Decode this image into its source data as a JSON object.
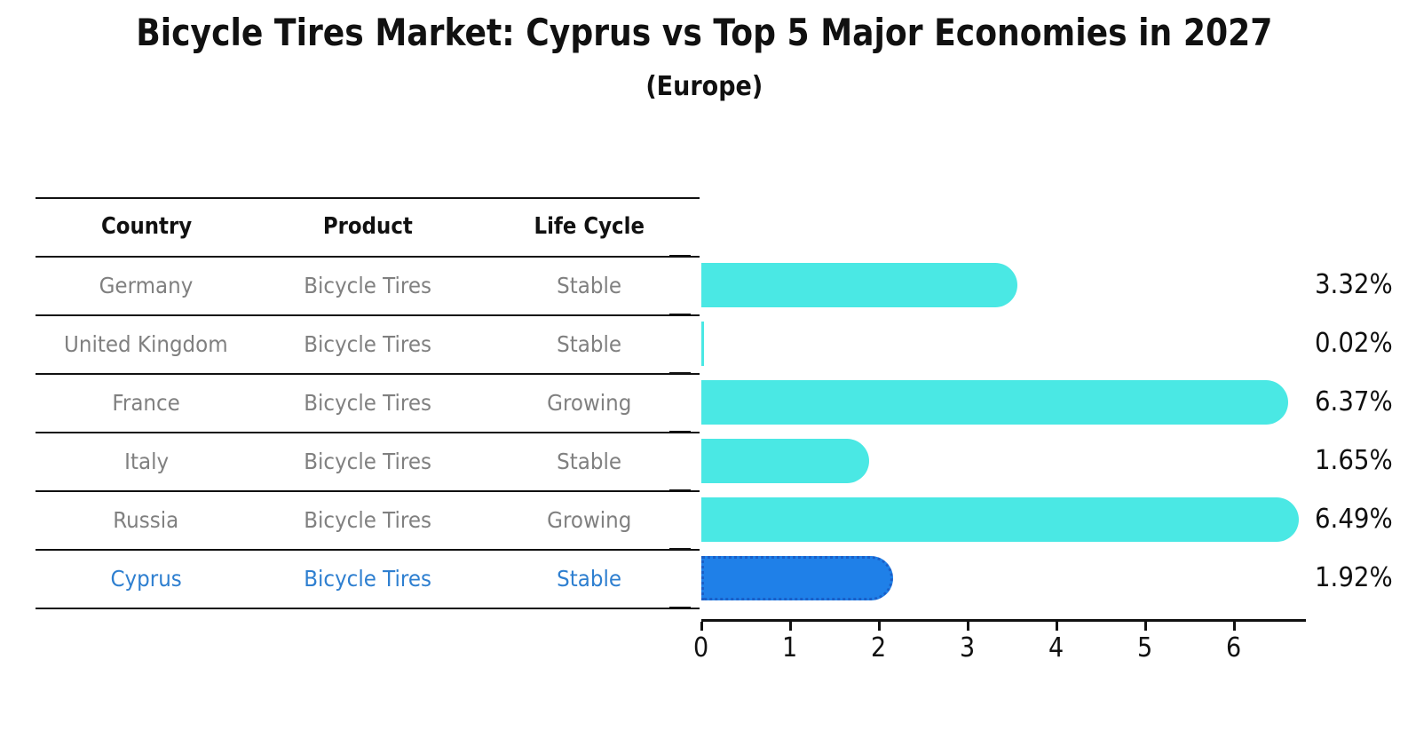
{
  "title": "Bicycle Tires Market: Cyprus vs Top 5 Major Economies in 2027",
  "subtitle": "(Europe)",
  "table": {
    "headers": [
      "Country",
      "Product",
      "Life Cycle"
    ],
    "rows": [
      {
        "country": "Germany",
        "product": "Bicycle Tires",
        "life_cycle": "Stable",
        "highlighted": false
      },
      {
        "country": "United Kingdom",
        "product": "Bicycle Tires",
        "life_cycle": "Stable",
        "highlighted": false
      },
      {
        "country": "France",
        "product": "Bicycle Tires",
        "life_cycle": "Growing",
        "highlighted": false
      },
      {
        "country": "Italy",
        "product": "Bicycle Tires",
        "life_cycle": "Stable",
        "highlighted": false
      },
      {
        "country": "Russia",
        "product": "Bicycle Tires",
        "life_cycle": "Growing",
        "highlighted": false
      },
      {
        "country": "Cyprus",
        "product": "Bicycle Tires",
        "life_cycle": "Stable",
        "highlighted": true
      }
    ]
  },
  "chart_data": {
    "type": "bar",
    "orientation": "horizontal",
    "title": "Bicycle Tires Market: Cyprus vs Top 5 Major Economies in 2027",
    "subtitle": "(Europe)",
    "categories": [
      "Germany",
      "United Kingdom",
      "France",
      "Italy",
      "Russia",
      "Cyprus"
    ],
    "values": [
      3.32,
      0.02,
      6.37,
      1.65,
      6.49,
      1.92
    ],
    "value_labels": [
      "3.32%",
      "0.02%",
      "6.37%",
      "1.65%",
      "6.49%",
      "1.92%"
    ],
    "x_ticks": [
      0,
      1,
      2,
      3,
      4,
      5,
      6
    ],
    "xlim": [
      0,
      6.8
    ],
    "grid": false,
    "legend": "none",
    "bar_color": "#4AE8E4",
    "highlight_index": 5,
    "highlight_color": "#1F80E8",
    "highlight_border_color": "#1A5FC8",
    "highlight_text_color": "#2E7FD0",
    "muted_text_color": "#808080",
    "axis_color": "#111111"
  }
}
